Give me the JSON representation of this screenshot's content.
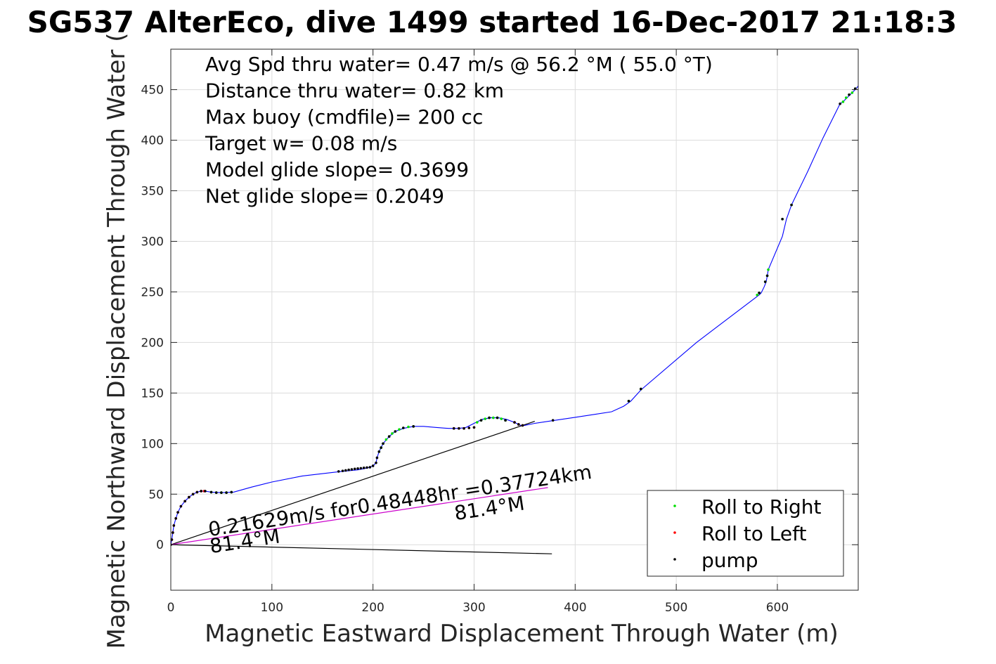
{
  "chart_data": {
    "type": "line",
    "title": "SG537 AlterEco, dive 1499 started 16-Dec-2017 21:18:3",
    "xlabel": "Magnetic Eastward Displacement Through Water (m)",
    "ylabel": "Magnetic Northward Displacement Through Water (",
    "xlim": [
      0,
      680
    ],
    "ylim": [
      -45,
      490
    ],
    "xticks": [
      0,
      100,
      200,
      300,
      400,
      500,
      600
    ],
    "yticks": [
      0,
      50,
      100,
      150,
      200,
      250,
      300,
      350,
      400,
      450
    ],
    "grid": true,
    "legend_position": "bottom-right",
    "annotations": {
      "summary": [
        "Avg Spd thru water=  0.47 m/s @  56.2 °M ( 55.0 °T)",
        "Distance thru water=  0.82 km",
        "Max buoy (cmdfile)= 200 cc",
        "Target w= 0.08 m/s",
        "Model glide slope= 0.3699",
        "Net glide slope= 0.2049"
      ],
      "current_text": "0.21629m/s for0.48448hr =0.37724km",
      "heading_label_1": "81.4°M",
      "heading_label_2": "81.4°M"
    },
    "series": [
      {
        "role": "track",
        "color": "#0000ff",
        "x": [
          0,
          1,
          2,
          3,
          5,
          7,
          10,
          14,
          18,
          22,
          26,
          30,
          34,
          40,
          50,
          62,
          80,
          100,
          130,
          165,
          185,
          190,
          195,
          200,
          203,
          204,
          206,
          210,
          216,
          222,
          230,
          240,
          250,
          262,
          275,
          285,
          292,
          300,
          308,
          316,
          324,
          332,
          340,
          346,
          350,
          360,
          380,
          400,
          420,
          436,
          448,
          455,
          465,
          520,
          582,
          584,
          587,
          589,
          590,
          591,
          605,
          609,
          614,
          630,
          645,
          662,
          665,
          670,
          674,
          678,
          681
        ],
        "y": [
          0,
          5,
          12,
          19,
          26,
          32,
          38,
          43,
          47,
          50,
          52,
          53,
          53,
          52,
          51.5,
          52,
          57,
          62,
          68,
          72,
          74,
          75,
          76,
          78,
          81,
          86,
          92,
          100,
          107,
          112,
          115,
          117,
          117,
          116,
          115,
          115,
          116,
          120,
          124,
          125.5,
          125.5,
          124,
          121,
          118,
          118,
          120,
          123,
          126,
          129,
          131.5,
          137,
          142,
          153,
          200,
          247,
          249,
          255,
          260,
          266,
          272,
          305,
          322,
          336,
          369,
          402,
          436,
          438,
          443,
          447,
          451,
          455
        ]
      },
      {
        "role": "net-current-line",
        "color": "#000000",
        "x": [
          0,
          377
        ],
        "y": [
          0,
          -9
        ]
      },
      {
        "role": "net-displacement-line",
        "color": "#000000",
        "x": [
          0,
          360
        ],
        "y": [
          0,
          122
        ]
      },
      {
        "role": "current-vector",
        "color": "#cc00cc",
        "x": [
          0,
          373
        ],
        "y": [
          0,
          56.5
        ]
      },
      {
        "name": "Roll to Right",
        "marker": "dot",
        "color": "#00dd00",
        "x": [
          40,
          45,
          50,
          55,
          60,
          206,
          208,
          210,
          213,
          216,
          219,
          222,
          226,
          230,
          235,
          240,
          303,
          307,
          311,
          315,
          319,
          323,
          327,
          331,
          453,
          465,
          580,
          582,
          588,
          590,
          591,
          605,
          614,
          665,
          668,
          671,
          674,
          677,
          681
        ],
        "y": [
          52,
          51.5,
          51.5,
          51.5,
          52,
          92,
          96,
          100,
          104,
          107,
          110,
          112,
          114,
          115.5,
          116.5,
          117,
          121,
          123,
          124.5,
          125.5,
          125.5,
          125.5,
          124.5,
          123,
          142,
          154,
          247,
          249,
          260,
          266,
          272,
          322,
          336,
          438,
          442,
          445,
          447,
          451,
          455
        ]
      },
      {
        "name": "Roll to Left",
        "marker": "dot",
        "color": "#ff0000",
        "x": [
          1,
          2,
          3,
          5,
          7,
          10,
          14,
          18,
          22,
          26,
          30,
          33,
          280,
          285,
          290,
          295,
          300,
          340,
          344,
          348
        ],
        "y": [
          5,
          12,
          19,
          26,
          32,
          38,
          43,
          47,
          50,
          52,
          53,
          53,
          115,
          115,
          115,
          115.5,
          116,
          121,
          119,
          118
        ]
      },
      {
        "name": "pump",
        "marker": "dot",
        "color": "#000000",
        "x": [
          0,
          1,
          2,
          3,
          5,
          7,
          10,
          14,
          18,
          22,
          26,
          30,
          34,
          40,
          45,
          50,
          55,
          60,
          166,
          170,
          173,
          176,
          179,
          182,
          185,
          188,
          191,
          194,
          197,
          200,
          203,
          204,
          206,
          208,
          210,
          216,
          222,
          230,
          240,
          280,
          285,
          290,
          295,
          300,
          307,
          315,
          323,
          331,
          340,
          344,
          348,
          378,
          453,
          465,
          582,
          588,
          590,
          605,
          614,
          662,
          671,
          677,
          681
        ],
        "y": [
          0,
          5,
          12,
          19,
          26,
          32,
          38,
          43,
          47,
          50,
          52,
          53,
          53,
          52,
          51.5,
          51.5,
          51.5,
          52,
          72.5,
          73,
          73.5,
          74,
          74.5,
          75,
          75.3,
          75.6,
          76,
          76.3,
          76.6,
          78,
          81,
          86,
          92,
          96,
          100,
          107,
          112,
          115.5,
          117,
          115,
          115,
          115,
          115.5,
          116,
          123,
          125.5,
          125.5,
          123,
          121,
          119,
          118,
          123,
          142,
          154,
          249,
          260,
          266,
          322,
          336,
          436,
          445,
          451,
          455
        ]
      }
    ]
  }
}
